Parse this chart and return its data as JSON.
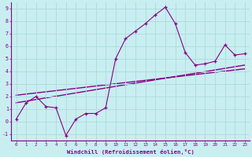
{
  "xlabel": "Windchill (Refroidissement éolien,°C)",
  "bg_color": "#c8eef0",
  "grid_color": "#b0dde0",
  "line_color": "#880088",
  "text_color": "#880088",
  "xlim": [
    -0.5,
    23.5
  ],
  "ylim": [
    -1.5,
    9.5
  ],
  "xticks": [
    0,
    1,
    2,
    3,
    4,
    5,
    6,
    7,
    8,
    9,
    10,
    11,
    12,
    13,
    14,
    15,
    16,
    17,
    18,
    19,
    20,
    21,
    22,
    23
  ],
  "yticks": [
    -1,
    0,
    1,
    2,
    3,
    4,
    5,
    6,
    7,
    8,
    9
  ],
  "main_x": [
    0,
    1,
    2,
    3,
    4,
    5,
    6,
    7,
    8,
    9,
    10,
    11,
    12,
    13,
    14,
    15,
    16,
    17,
    18,
    19,
    20,
    21,
    22,
    23
  ],
  "main_y": [
    0.2,
    1.5,
    2.0,
    1.2,
    1.1,
    -1.1,
    0.2,
    0.65,
    0.65,
    1.1,
    5.0,
    6.6,
    7.2,
    7.8,
    8.5,
    9.1,
    7.8,
    5.5,
    4.5,
    4.6,
    4.8,
    6.1,
    5.3,
    5.4
  ],
  "trend1_x": [
    0,
    23
  ],
  "trend1_y": [
    1.5,
    4.5
  ],
  "trend2_x": [
    0,
    23
  ],
  "trend2_y": [
    2.1,
    4.2
  ]
}
